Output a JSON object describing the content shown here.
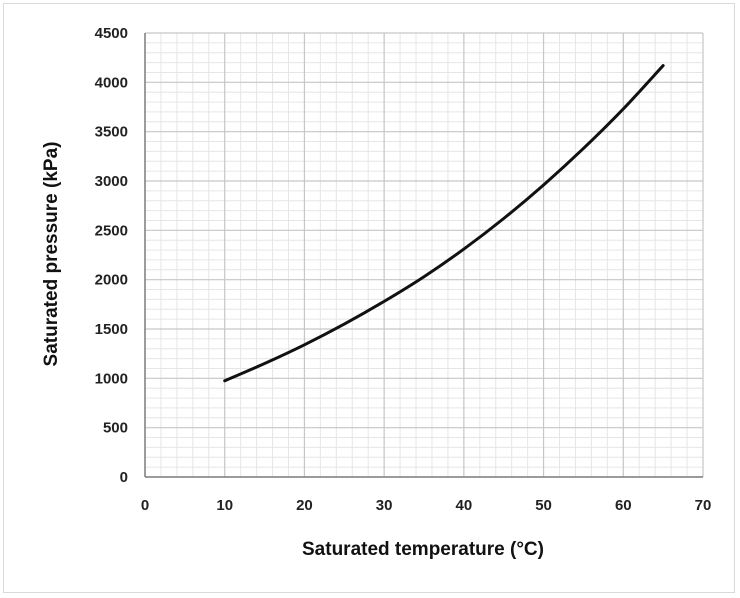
{
  "chart_data": {
    "type": "line",
    "title": "",
    "xlabel": "Saturated temperature (°C)",
    "ylabel": "Saturated pressure (kPa)",
    "xlim": [
      0,
      70
    ],
    "ylim": [
      0,
      4500
    ],
    "x_ticks": [
      "0",
      "10",
      "20",
      "30",
      "40",
      "50",
      "60",
      "70"
    ],
    "y_ticks": [
      "0",
      "500",
      "1000",
      "1500",
      "2000",
      "2500",
      "3000",
      "3500",
      "4000",
      "4500"
    ],
    "x_minor_per_major": 5,
    "y_minor_per_major": 5,
    "grid": true,
    "legend": "none",
    "series": [
      {
        "color": "#111111",
        "x": [
          10,
          15,
          20,
          25,
          30,
          35,
          40,
          45,
          50,
          55,
          60,
          65
        ],
        "y": [
          975,
          1150,
          1340,
          1550,
          1780,
          2030,
          2310,
          2620,
          2960,
          3330,
          3730,
          4170
        ]
      }
    ],
    "colors": {
      "major_grid": "#c6c6c6",
      "minor_grid": "#e6e6e6",
      "axis": "#7f7f7f",
      "line": "#111111"
    }
  }
}
